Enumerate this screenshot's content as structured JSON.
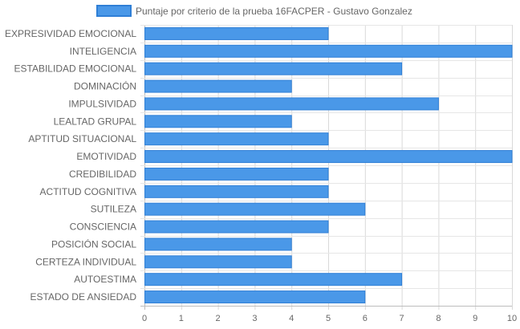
{
  "chart_data": {
    "type": "bar",
    "orientation": "horizontal",
    "categories": [
      "EXPRESIVIDAD EMOCIONAL",
      "INTELIGENCIA",
      "ESTABILIDAD EMOCIONAL",
      "DOMINACIÓN",
      "IMPULSIVIDAD",
      "LEALTAD GRUPAL",
      "APTITUD SITUACIONAL",
      "EMOTIVIDAD",
      "CREDIBILIDAD",
      "ACTITUD COGNITIVA",
      "SUTILEZA",
      "CONSCIENCIA",
      "POSICIÓN SOCIAL",
      "CERTEZA INDIVIDUAL",
      "AUTOESTIMA",
      "ESTADO DE ANSIEDAD"
    ],
    "series": [
      {
        "name": "Puntaje por criterio de la prueba 16FACPER - Gustavo Gonzalez",
        "values": [
          5,
          10,
          7,
          4,
          8,
          4,
          5,
          10,
          5,
          5,
          6,
          5,
          4,
          4,
          7,
          6
        ],
        "color": "#4a98e8",
        "border_color": "#2f7fd6"
      }
    ],
    "xlim": [
      0,
      10
    ],
    "xticks": [
      "0",
      "1",
      "2",
      "3",
      "4",
      "5",
      "6",
      "7",
      "8",
      "9",
      "10"
    ],
    "grid": true,
    "legend_position": "top"
  }
}
